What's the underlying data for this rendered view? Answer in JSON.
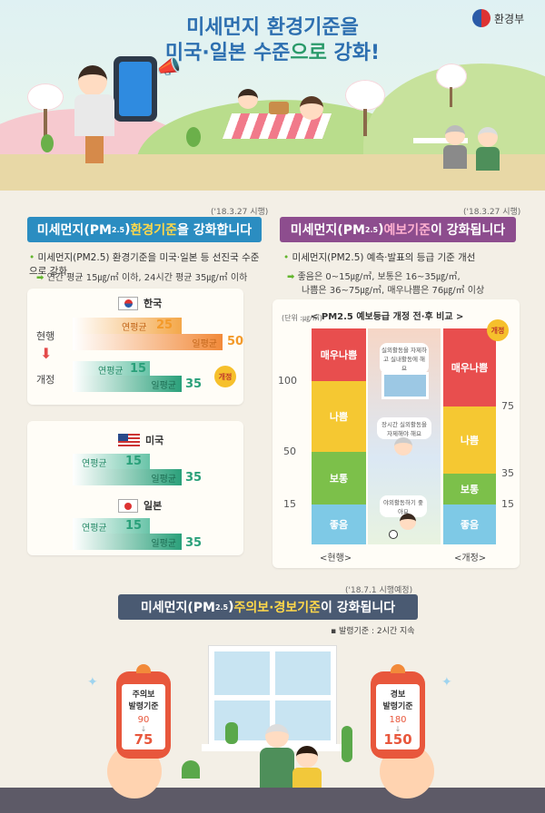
{
  "hero": {
    "title_line1": "미세먼지 환경기준을",
    "title_line2_pre": "미국·일본 수준",
    "title_line2_hl": "으로",
    "title_line2_post": " 강화!",
    "ministry": "환경부"
  },
  "left": {
    "date": "('18.3.27 시행)",
    "header_pre": "미세먼지(PM",
    "header_sub": "2.5",
    "header_mid": ") ",
    "header_acc": "환경기준",
    "header_post": "을 강화합니다",
    "bullet1": "미세먼지(PM2.5) 환경기준을 미국·일본 등 선진국 수준으로 강화",
    "bullet2": "연간 평균 15㎍/㎥ 이하, 24시간 평균 35㎍/㎥ 이하",
    "korea": {
      "country": "한국",
      "label_current": "현행",
      "label_revised": "개정",
      "badge": "개정",
      "cur_annual_label": "연평균",
      "cur_annual": "25",
      "cur_daily_label": "일평균",
      "cur_daily": "50",
      "rev_annual_label": "연평균",
      "rev_annual": "15",
      "rev_daily_label": "일평균",
      "rev_daily": "35"
    },
    "usa": {
      "country": "미국",
      "annual_label": "연평균",
      "annual": "15",
      "daily_label": "일평균",
      "daily": "35"
    },
    "japan": {
      "country": "일본",
      "annual_label": "연평균",
      "annual": "15",
      "daily_label": "일평균",
      "daily": "35"
    }
  },
  "right": {
    "date": "('18.3.27 시행)",
    "header_pre": "미세먼지(PM",
    "header_sub": "2.5",
    "header_mid": ") ",
    "header_acc": "예보기준",
    "header_post": "이 강화됩니다",
    "bullet1": "미세먼지(PM2.5) 예측·발표의 등급 기준 개선",
    "bullet2": "좋음은 0~15㎍/㎥, 보통은 16~35㎍/㎥,",
    "bullet3": "나쁨은 36~75㎍/㎥, 매우나쁨은 76㎍/㎥ 이상",
    "chart_title": "< PM2.5 예보등급 개정 전·후 비교 >",
    "unit": "(단위 :㎍/㎥)",
    "badge": "개정",
    "left_ticks": [
      "100",
      "50",
      "15"
    ],
    "right_ticks": [
      "75",
      "35",
      "15"
    ],
    "cur_label": "<현행>",
    "rev_label": "<개정>",
    "grades": [
      "매우나쁨",
      "나쁨",
      "보통",
      "좋음"
    ],
    "notes": [
      "실외활동을 자제하고 실내활동에 해요",
      "장시간 실외활동을 자제해야 해요",
      "야외활동하기 좋아요"
    ],
    "colors": {
      "very_bad": "#e84e4e",
      "bad": "#f5c832",
      "normal": "#7cc04a",
      "good": "#7ec9e6"
    }
  },
  "bottom": {
    "date": "('18.7.1 시행예정)",
    "header_pre": "미세먼지(PM",
    "header_sub": "2.5",
    "header_mid": ") ",
    "header_acc": "주의보·경보기준",
    "header_post": "이 강화됩니다",
    "bullet": "발령기준 : 2시간 지속",
    "phone_left": {
      "line1": "주의보",
      "line2": "발령기준",
      "from": "90",
      "to": "75"
    },
    "phone_right": {
      "line1": "경보",
      "line2": "발령기준",
      "from": "180",
      "to": "150"
    }
  }
}
